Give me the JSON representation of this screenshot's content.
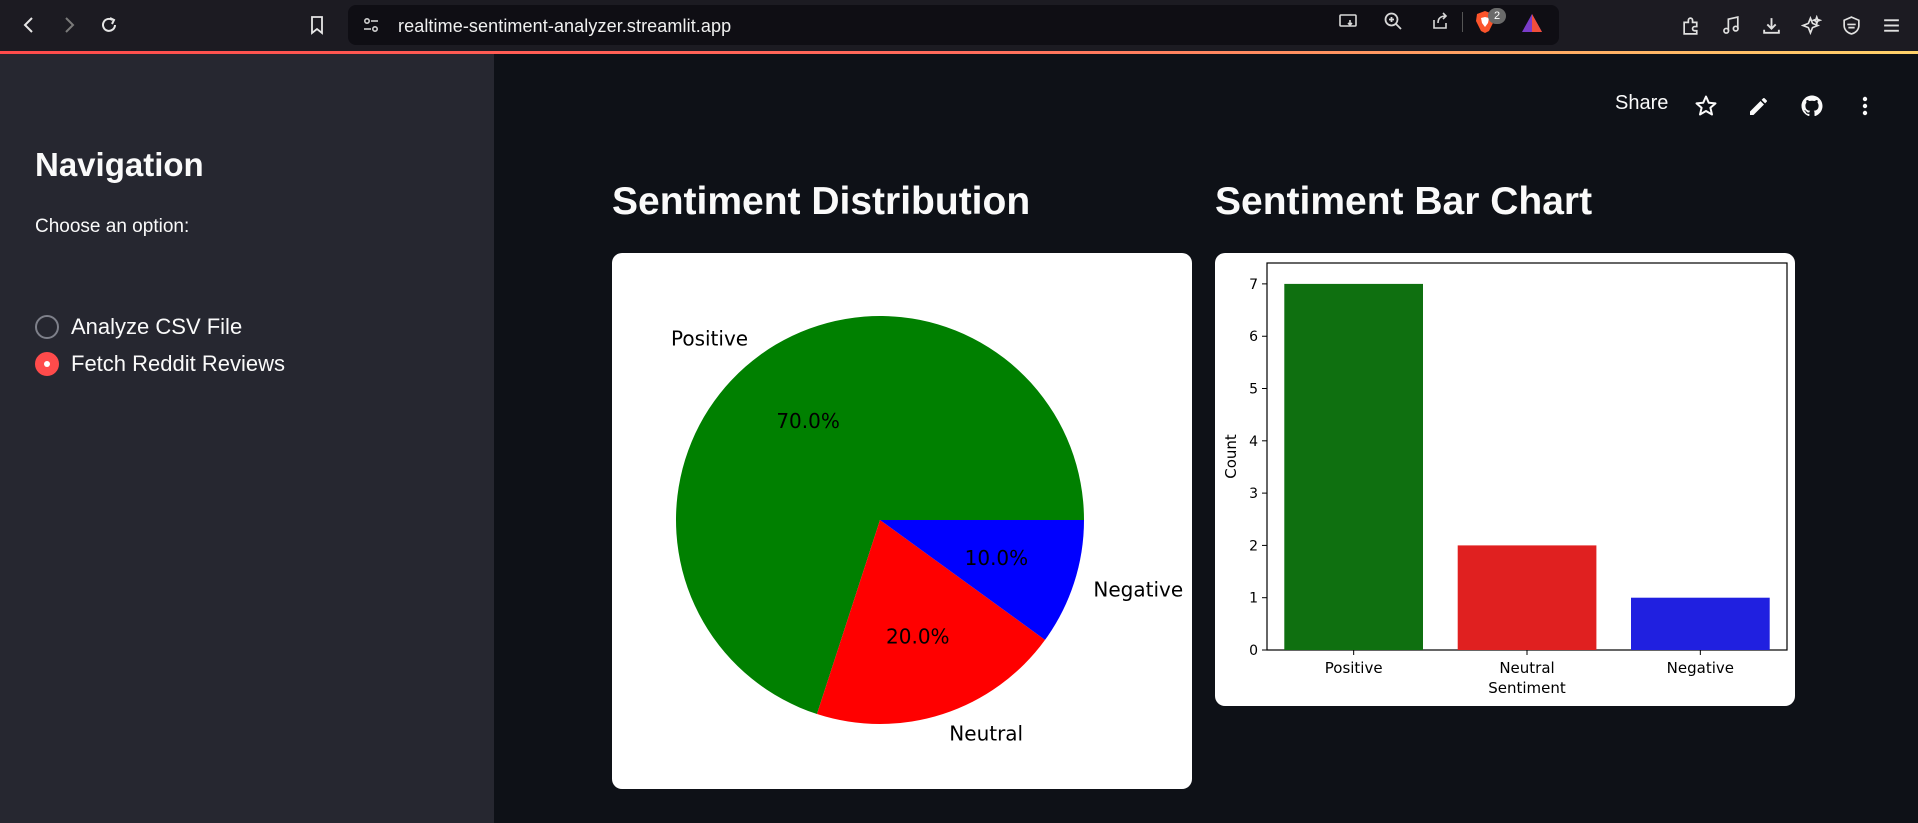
{
  "browser": {
    "url": "realtime-sentiment-analyzer.streamlit.app",
    "brave_badge": "2"
  },
  "toolbar": {
    "share_label": "Share"
  },
  "sidebar": {
    "title": "Navigation",
    "choose_label": "Choose an option:",
    "options": [
      {
        "label": "Analyze CSV File",
        "selected": false
      },
      {
        "label": "Fetch Reddit Reviews",
        "selected": true
      }
    ],
    "accent_color": "#ff4b4b"
  },
  "pie_section": {
    "title": "Sentiment Distribution"
  },
  "bar_section": {
    "title": "Sentiment Bar Chart"
  },
  "chart_data": [
    {
      "type": "pie",
      "title": "",
      "categories": [
        "Positive",
        "Neutral",
        "Negative"
      ],
      "values": [
        70.0,
        20.0,
        10.0
      ],
      "value_labels": [
        "70.0%",
        "20.0%",
        "10.0%"
      ],
      "colors": [
        "#008000",
        "#ff0000",
        "#0000ff"
      ]
    },
    {
      "type": "bar",
      "title": "",
      "categories": [
        "Positive",
        "Neutral",
        "Negative"
      ],
      "values": [
        7,
        2,
        1
      ],
      "colors": [
        "#0f7010",
        "#e02020",
        "#2020e0"
      ],
      "xlabel": "Sentiment",
      "ylabel": "Count",
      "ylim": [
        0,
        7.4
      ],
      "yticks": [
        "0",
        "1",
        "2",
        "3",
        "4",
        "5",
        "6",
        "7"
      ],
      "grid": false
    }
  ]
}
